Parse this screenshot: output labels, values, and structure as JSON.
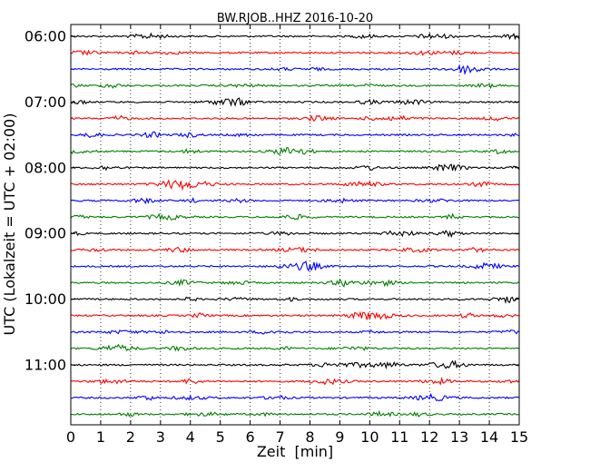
{
  "chart_data": {
    "type": "line",
    "title": "BW.RJOB..HHZ 2016-10-20",
    "xlabel": "Zeit  [min]",
    "ylabel": "UTC (Lokalzeit = UTC + 02:00)",
    "xlim": [
      0,
      15
    ],
    "xticks": [
      0,
      1,
      2,
      3,
      4,
      5,
      6,
      7,
      8,
      9,
      10,
      11,
      12,
      13,
      14,
      15
    ],
    "xtick_labels": [
      "0",
      "1",
      "2",
      "3",
      "4",
      "5",
      "6",
      "7",
      "8",
      "9",
      "10",
      "11",
      "12",
      "13",
      "14",
      "15"
    ],
    "yticks": [
      {
        "label": "06:00",
        "row": 0
      },
      {
        "label": "07:00",
        "row": 4
      },
      {
        "label": "08:00",
        "row": 8
      },
      {
        "label": "09:00",
        "row": 12
      },
      {
        "label": "10:00",
        "row": 16
      },
      {
        "label": "11:00",
        "row": 20
      }
    ],
    "grid": "vertical-dotted",
    "trace_colors": [
      "#000000",
      "#ff0000",
      "#0000ff",
      "#008000"
    ],
    "series": [
      {
        "start": "06:00",
        "color": "#000000"
      },
      {
        "start": "06:15",
        "color": "#ff0000"
      },
      {
        "start": "06:30",
        "color": "#0000ff"
      },
      {
        "start": "06:45",
        "color": "#008000"
      },
      {
        "start": "07:00",
        "color": "#000000"
      },
      {
        "start": "07:15",
        "color": "#ff0000"
      },
      {
        "start": "07:30",
        "color": "#0000ff"
      },
      {
        "start": "07:45",
        "color": "#008000"
      },
      {
        "start": "08:00",
        "color": "#000000"
      },
      {
        "start": "08:15",
        "color": "#ff0000"
      },
      {
        "start": "08:30",
        "color": "#0000ff"
      },
      {
        "start": "08:45",
        "color": "#008000"
      },
      {
        "start": "09:00",
        "color": "#000000"
      },
      {
        "start": "09:15",
        "color": "#ff0000"
      },
      {
        "start": "09:30",
        "color": "#0000ff"
      },
      {
        "start": "09:45",
        "color": "#008000"
      },
      {
        "start": "10:00",
        "color": "#000000"
      },
      {
        "start": "10:15",
        "color": "#ff0000"
      },
      {
        "start": "10:30",
        "color": "#0000ff"
      },
      {
        "start": "10:45",
        "color": "#008000"
      },
      {
        "start": "11:00",
        "color": "#000000"
      },
      {
        "start": "11:15",
        "color": "#ff0000"
      },
      {
        "start": "11:30",
        "color": "#0000ff"
      },
      {
        "start": "11:45",
        "color": "#008000"
      }
    ]
  }
}
